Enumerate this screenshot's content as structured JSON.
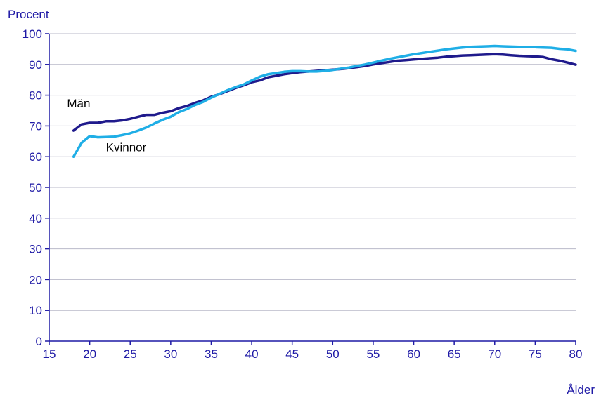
{
  "chart_data": {
    "type": "line",
    "ylabel": "Procent",
    "xlabel": "Ålder",
    "xlim": [
      15,
      80
    ],
    "ylim": [
      0,
      100
    ],
    "x_ticks": [
      15,
      20,
      25,
      30,
      35,
      40,
      45,
      50,
      55,
      60,
      65,
      70,
      75,
      80
    ],
    "y_ticks": [
      0,
      10,
      20,
      30,
      40,
      50,
      60,
      70,
      80,
      90,
      100
    ],
    "grid": "horizontal",
    "legend": "none",
    "series": [
      {
        "name": "Män",
        "color": "#1f1a8c",
        "x": [
          18,
          19,
          20,
          21,
          22,
          23,
          24,
          25,
          26,
          27,
          28,
          29,
          30,
          31,
          32,
          33,
          34,
          35,
          36,
          37,
          38,
          39,
          40,
          41,
          42,
          43,
          44,
          45,
          46,
          47,
          48,
          49,
          50,
          51,
          52,
          53,
          54,
          55,
          56,
          57,
          58,
          59,
          60,
          61,
          62,
          63,
          64,
          65,
          66,
          67,
          68,
          69,
          70,
          71,
          72,
          73,
          74,
          75,
          76,
          77,
          78,
          79,
          80
        ],
        "y": [
          68.5,
          70.5,
          71.0,
          71.0,
          71.5,
          71.5,
          71.8,
          72.3,
          73.0,
          73.6,
          73.6,
          74.3,
          74.8,
          75.8,
          76.5,
          77.5,
          78.3,
          79.5,
          80.3,
          81.3,
          82.3,
          83.2,
          84.2,
          84.8,
          85.8,
          86.3,
          86.8,
          87.2,
          87.5,
          87.7,
          87.9,
          88.1,
          88.3,
          88.5,
          88.8,
          89.1,
          89.5,
          90.0,
          90.4,
          90.8,
          91.2,
          91.4,
          91.6,
          91.8,
          92.0,
          92.2,
          92.5,
          92.7,
          92.9,
          93.0,
          93.1,
          93.2,
          93.3,
          93.2,
          93.0,
          92.8,
          92.7,
          92.6,
          92.4,
          91.7,
          91.2,
          90.6,
          89.9
        ]
      },
      {
        "name": "Kvinnor",
        "color": "#1faee6",
        "x": [
          18,
          19,
          20,
          21,
          22,
          23,
          24,
          25,
          26,
          27,
          28,
          29,
          30,
          31,
          32,
          33,
          34,
          35,
          36,
          37,
          38,
          39,
          40,
          41,
          42,
          43,
          44,
          45,
          46,
          47,
          48,
          49,
          50,
          51,
          52,
          53,
          54,
          55,
          56,
          57,
          58,
          59,
          60,
          61,
          62,
          63,
          64,
          65,
          66,
          67,
          68,
          69,
          70,
          71,
          72,
          73,
          74,
          75,
          76,
          77,
          78,
          79,
          80
        ],
        "y": [
          60.0,
          64.5,
          66.7,
          66.3,
          66.4,
          66.5,
          67.0,
          67.6,
          68.5,
          69.5,
          70.8,
          72.0,
          73.0,
          74.5,
          75.5,
          76.8,
          77.8,
          79.2,
          80.4,
          81.6,
          82.6,
          83.5,
          84.8,
          86.0,
          86.8,
          87.2,
          87.6,
          87.8,
          87.8,
          87.7,
          87.7,
          87.9,
          88.2,
          88.6,
          89.0,
          89.5,
          90.0,
          90.6,
          91.2,
          91.8,
          92.3,
          92.8,
          93.3,
          93.7,
          94.1,
          94.5,
          94.9,
          95.2,
          95.5,
          95.7,
          95.8,
          95.9,
          96.0,
          95.9,
          95.8,
          95.7,
          95.7,
          95.6,
          95.5,
          95.4,
          95.1,
          94.9,
          94.4
        ]
      }
    ],
    "series_labels": [
      {
        "text": "Män",
        "series": "Män",
        "at_x": 17.2,
        "at_y": 76.0
      },
      {
        "text": "Kvinnor",
        "series": "Kvinnor",
        "at_x": 22.0,
        "at_y": 61.8
      }
    ]
  }
}
